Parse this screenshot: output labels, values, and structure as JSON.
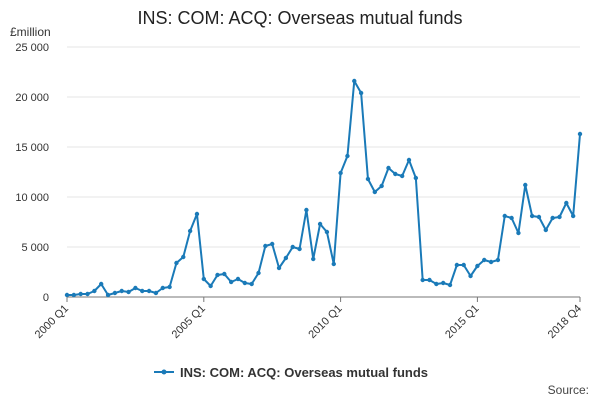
{
  "chart_data": {
    "type": "line",
    "title": "INS: COM: ACQ: Overseas mutual funds",
    "ylabel": "£million",
    "xlabel": "",
    "ylim": [
      0,
      25000
    ],
    "yticks": [
      0,
      5000,
      10000,
      15000,
      20000,
      25000
    ],
    "ytick_labels": [
      "0",
      "5 000",
      "10 000",
      "15 000",
      "20 000",
      "25 000"
    ],
    "xtick_labels": [
      "2000 Q1",
      "2005 Q1",
      "2010 Q1",
      "2015 Q1",
      "2018 Q4"
    ],
    "xtick_index": [
      0,
      20,
      40,
      60,
      75
    ],
    "grid": true,
    "legend_position": "bottom",
    "color": "#1a7ab8",
    "source_label": "Source:",
    "series": [
      {
        "name": "INS: COM: ACQ: Overseas mutual funds",
        "x": [
          "2000 Q1",
          "2000 Q2",
          "2000 Q3",
          "2000 Q4",
          "2001 Q1",
          "2001 Q2",
          "2001 Q3",
          "2001 Q4",
          "2002 Q1",
          "2002 Q2",
          "2002 Q3",
          "2002 Q4",
          "2003 Q1",
          "2003 Q2",
          "2003 Q3",
          "2003 Q4",
          "2004 Q1",
          "2004 Q2",
          "2004 Q3",
          "2004 Q4",
          "2005 Q1",
          "2005 Q2",
          "2005 Q3",
          "2005 Q4",
          "2006 Q1",
          "2006 Q2",
          "2006 Q3",
          "2006 Q4",
          "2007 Q1",
          "2007 Q2",
          "2007 Q3",
          "2007 Q4",
          "2008 Q1",
          "2008 Q2",
          "2008 Q3",
          "2008 Q4",
          "2009 Q1",
          "2009 Q2",
          "2009 Q3",
          "2009 Q4",
          "2010 Q1",
          "2010 Q2",
          "2010 Q3",
          "2010 Q4",
          "2011 Q1",
          "2011 Q2",
          "2011 Q3",
          "2011 Q4",
          "2012 Q1",
          "2012 Q2",
          "2012 Q3",
          "2012 Q4",
          "2013 Q1",
          "2013 Q2",
          "2013 Q3",
          "2013 Q4",
          "2014 Q1",
          "2014 Q2",
          "2014 Q3",
          "2014 Q4",
          "2015 Q1",
          "2015 Q2",
          "2015 Q3",
          "2015 Q4",
          "2016 Q1",
          "2016 Q2",
          "2016 Q3",
          "2016 Q4",
          "2017 Q1",
          "2017 Q2",
          "2017 Q3",
          "2017 Q4",
          "2018 Q1",
          "2018 Q2",
          "2018 Q3",
          "2018 Q4"
        ],
        "values": [
          200,
          200,
          300,
          300,
          600,
          1300,
          200,
          400,
          600,
          500,
          900,
          600,
          600,
          400,
          900,
          1000,
          3400,
          4000,
          6600,
          8300,
          1800,
          1100,
          2200,
          2300,
          1500,
          1800,
          1400,
          1300,
          2400,
          5100,
          5300,
          2900,
          3900,
          5000,
          4800,
          8700,
          3800,
          7300,
          6500,
          3300,
          12400,
          14100,
          21600,
          20400,
          11800,
          10500,
          11100,
          12900,
          12300,
          12100,
          13700,
          11900,
          1700,
          1700,
          1300,
          1400,
          1200,
          3200,
          3200,
          2100,
          3100,
          3700,
          3500,
          3700,
          8100,
          7900,
          6400,
          11200,
          8100,
          8000,
          6700,
          7900,
          8000,
          9400,
          8100,
          16300
        ]
      }
    ]
  }
}
